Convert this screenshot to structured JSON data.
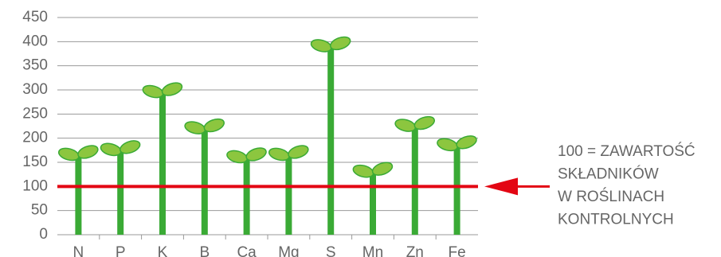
{
  "chart_data": {
    "type": "sprout-bar",
    "categories": [
      "N",
      "P",
      "K",
      "B",
      "Ca",
      "Mg",
      "S",
      "Mn",
      "Zn",
      "Fe"
    ],
    "values": [
      160,
      170,
      290,
      215,
      155,
      160,
      385,
      125,
      220,
      180
    ],
    "color": "#3aaa35",
    "leaf_color": "#8cc63f",
    "ylim": [
      0,
      450
    ],
    "yticks": [
      0,
      50,
      100,
      150,
      200,
      250,
      300,
      350,
      400,
      450
    ],
    "grid": true,
    "reference_line": {
      "value": 100,
      "color": "#e30613"
    },
    "annotation": [
      "100 = ZAWARTOŚĆ",
      "SKŁADNIKÓW",
      "W ROŚLINACH",
      "KONTROLNYCH"
    ]
  }
}
